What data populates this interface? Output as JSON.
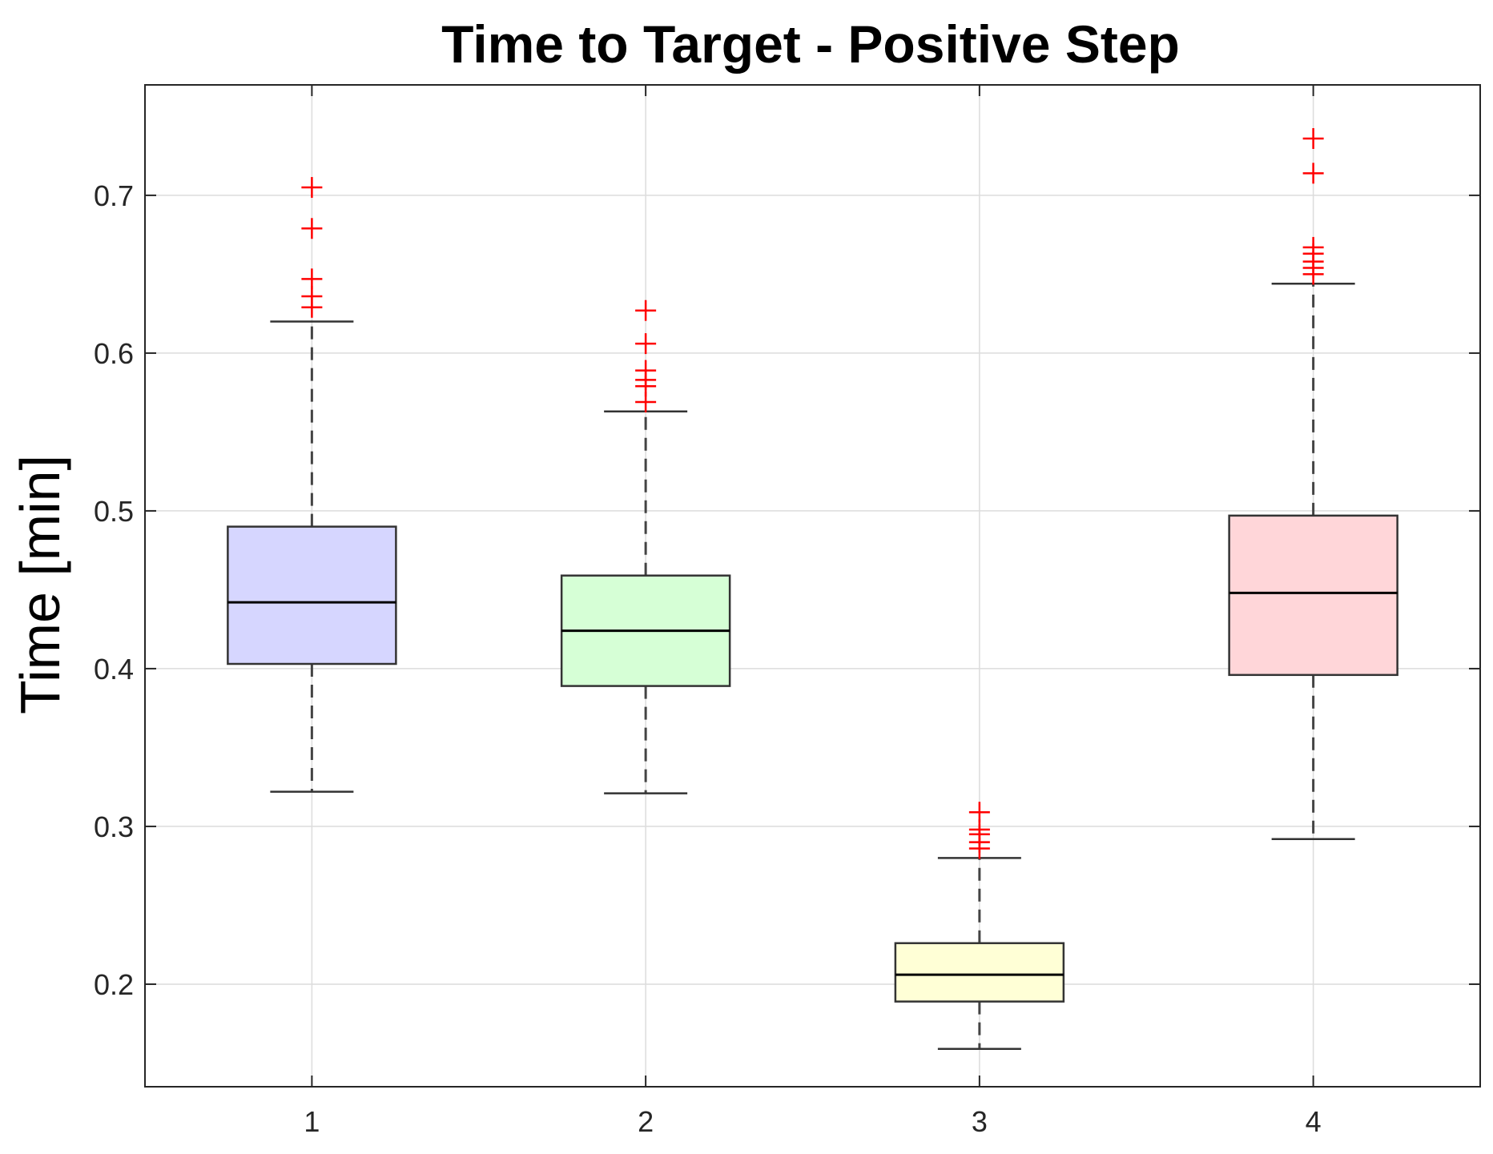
{
  "chart_data": {
    "type": "boxplot",
    "title": "Time to Target - Positive Step",
    "xlabel": "",
    "ylabel": "Time [min]",
    "categories": [
      "1",
      "2",
      "3",
      "4"
    ],
    "ylim": [
      0.135,
      0.77
    ],
    "yticks": [
      0.2,
      0.3,
      0.4,
      0.5,
      0.6,
      0.7
    ],
    "ytick_labels": [
      "0.2",
      "0.3",
      "0.4",
      "0.5",
      "0.6",
      "0.7"
    ],
    "grid": true,
    "boxes": [
      {
        "category": "1",
        "color": "#d6d6ff",
        "whisker_low": 0.322,
        "q1": 0.403,
        "median": 0.442,
        "q3": 0.49,
        "whisker_high": 0.62,
        "outliers": [
          0.629,
          0.636,
          0.647,
          0.679,
          0.705
        ]
      },
      {
        "category": "2",
        "color": "#d6ffd6",
        "whisker_low": 0.321,
        "q1": 0.389,
        "median": 0.424,
        "q3": 0.459,
        "whisker_high": 0.563,
        "outliers": [
          0.569,
          0.579,
          0.583,
          0.589,
          0.606,
          0.627
        ]
      },
      {
        "category": "3",
        "color": "#ffffd6",
        "whisker_low": 0.159,
        "q1": 0.189,
        "median": 0.206,
        "q3": 0.226,
        "whisker_high": 0.28,
        "outliers": [
          0.286,
          0.29,
          0.295,
          0.298,
          0.309
        ]
      },
      {
        "category": "4",
        "color": "#ffd6d9",
        "whisker_low": 0.292,
        "q1": 0.396,
        "median": 0.448,
        "q3": 0.497,
        "whisker_high": 0.644,
        "outliers": [
          0.65,
          0.654,
          0.658,
          0.663,
          0.667,
          0.714,
          0.736
        ]
      }
    ],
    "colors": {
      "outlier": "#ff0000",
      "grid": "#dcdcdc",
      "axis": "#262626",
      "median": "#000000",
      "whisker": "#444444"
    }
  }
}
